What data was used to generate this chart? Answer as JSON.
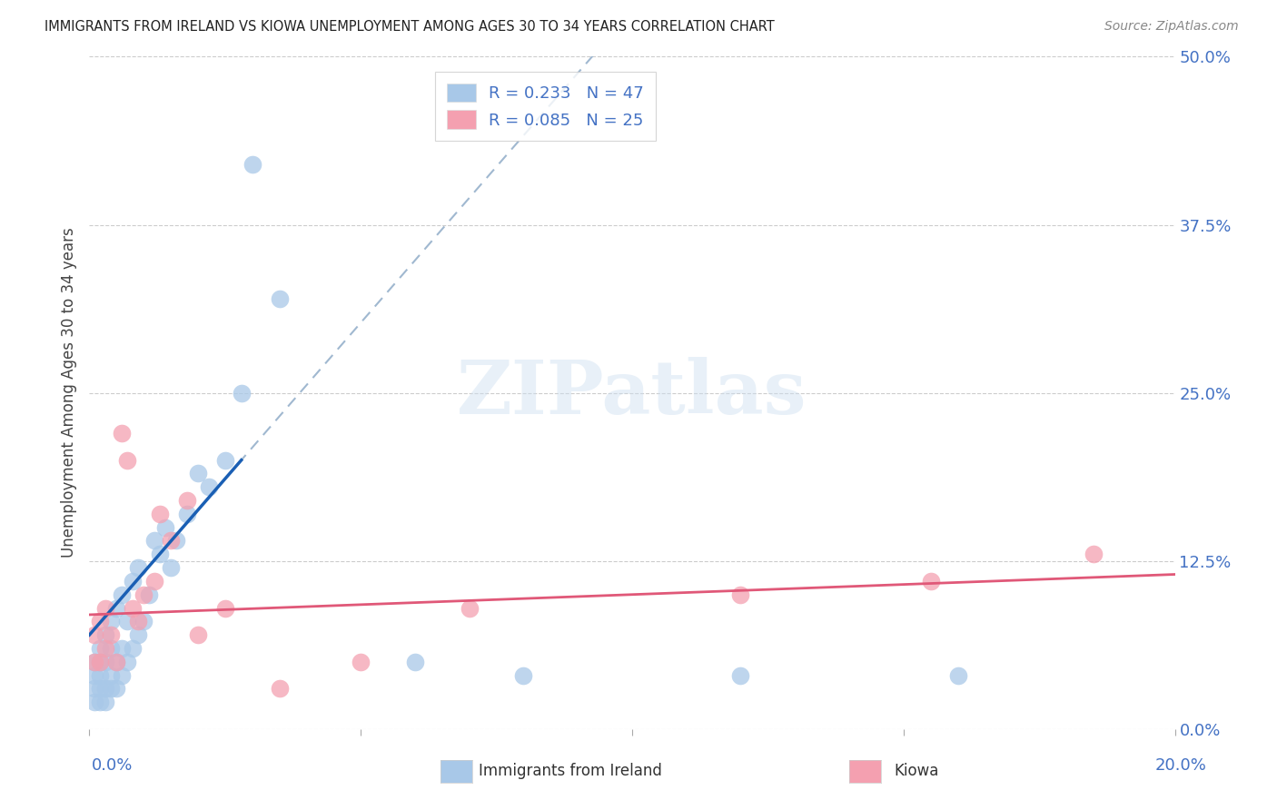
{
  "title": "IMMIGRANTS FROM IRELAND VS KIOWA UNEMPLOYMENT AMONG AGES 30 TO 34 YEARS CORRELATION CHART",
  "source": "Source: ZipAtlas.com",
  "ylabel": "Unemployment Among Ages 30 to 34 years",
  "ytick_labels": [
    "0.0%",
    "12.5%",
    "25.0%",
    "37.5%",
    "50.0%"
  ],
  "ytick_values": [
    0.0,
    0.125,
    0.25,
    0.375,
    0.5
  ],
  "xlim": [
    0.0,
    0.2
  ],
  "ylim": [
    0.0,
    0.5
  ],
  "series1_color": "#a8c8e8",
  "series2_color": "#f4a0b0",
  "series1_line_color": "#1a5fb4",
  "series2_line_color": "#e05878",
  "dashed_color": "#a0b8d0",
  "background_color": "#ffffff",
  "grid_color": "#cccccc",
  "watermark": "ZIPatlas",
  "title_color": "#222222",
  "source_color": "#888888",
  "tick_color": "#4472c4",
  "ylabel_color": "#444444",
  "legend_edge_color": "#cccccc",
  "s1_label": "R = 0.233   N = 47",
  "s2_label": "R = 0.085   N = 25",
  "bottom_label1": "Immigrants from Ireland",
  "bottom_label2": "Kiowa",
  "scatter1_x": [
    0.001,
    0.001,
    0.001,
    0.001,
    0.002,
    0.002,
    0.002,
    0.002,
    0.002,
    0.003,
    0.003,
    0.003,
    0.003,
    0.004,
    0.004,
    0.004,
    0.004,
    0.005,
    0.005,
    0.005,
    0.006,
    0.006,
    0.006,
    0.007,
    0.007,
    0.008,
    0.008,
    0.009,
    0.009,
    0.01,
    0.011,
    0.012,
    0.013,
    0.014,
    0.015,
    0.016,
    0.018,
    0.02,
    0.022,
    0.025,
    0.028,
    0.03,
    0.035,
    0.06,
    0.08,
    0.12,
    0.16
  ],
  "scatter1_y": [
    0.02,
    0.03,
    0.04,
    0.05,
    0.02,
    0.03,
    0.04,
    0.05,
    0.06,
    0.02,
    0.03,
    0.05,
    0.07,
    0.03,
    0.04,
    0.06,
    0.08,
    0.03,
    0.05,
    0.09,
    0.04,
    0.06,
    0.1,
    0.05,
    0.08,
    0.06,
    0.11,
    0.07,
    0.12,
    0.08,
    0.1,
    0.14,
    0.13,
    0.15,
    0.12,
    0.14,
    0.16,
    0.19,
    0.18,
    0.2,
    0.25,
    0.42,
    0.32,
    0.05,
    0.04,
    0.04,
    0.04
  ],
  "scatter2_x": [
    0.001,
    0.001,
    0.002,
    0.002,
    0.003,
    0.003,
    0.004,
    0.005,
    0.006,
    0.007,
    0.008,
    0.009,
    0.01,
    0.012,
    0.013,
    0.015,
    0.018,
    0.02,
    0.025,
    0.035,
    0.05,
    0.07,
    0.12,
    0.155,
    0.185
  ],
  "scatter2_y": [
    0.05,
    0.07,
    0.05,
    0.08,
    0.06,
    0.09,
    0.07,
    0.05,
    0.22,
    0.2,
    0.09,
    0.08,
    0.1,
    0.11,
    0.16,
    0.14,
    0.17,
    0.07,
    0.09,
    0.03,
    0.05,
    0.09,
    0.1,
    0.11,
    0.13
  ],
  "trendline1_x0": 0.0,
  "trendline1_y0": 0.07,
  "trendline1_x1": 0.028,
  "trendline1_y1": 0.2,
  "trendline2_x0": 0.0,
  "trendline2_y0": 0.085,
  "trendline2_x1": 0.2,
  "trendline2_y1": 0.115
}
